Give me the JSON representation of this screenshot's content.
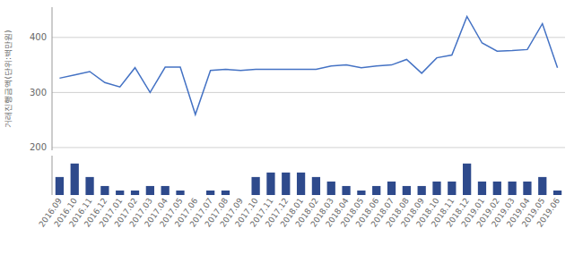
{
  "chart_data": [
    {
      "type": "line",
      "y_label": "거래진행금액(단위:백만원)",
      "categories": [
        "2016.09",
        "2016.10",
        "2016.11",
        "2016.12",
        "2017.01",
        "2017.02",
        "2017.03",
        "2017.04",
        "2017.05",
        "2017.06",
        "2017.07",
        "2017.08",
        "2017.09",
        "2017.10",
        "2017.11",
        "2017.12",
        "2018.01",
        "2018.02",
        "2018.03",
        "2018.04",
        "2018.05",
        "2018.06",
        "2018.07",
        "2018.08",
        "2018.09",
        "2018.10",
        "2018.11",
        "2018.12",
        "2019.01",
        "2019.02",
        "2019.03",
        "2019.04",
        "2019.05",
        "2019.06"
      ],
      "values": [
        326,
        332,
        338,
        318,
        310,
        345,
        300,
        346,
        346,
        260,
        340,
        342,
        340,
        342,
        342,
        342,
        342,
        342,
        348,
        350,
        345,
        348,
        350,
        360,
        335,
        363,
        368,
        438,
        390,
        375,
        376,
        378,
        425,
        345
      ],
      "color": "#4472c4",
      "ylim": [
        195,
        455
      ],
      "yticks": [
        200,
        300,
        400
      ],
      "grid": true,
      "tick_labels": "y"
    },
    {
      "type": "bar",
      "categories": [
        "2016.09",
        "2016.10",
        "2016.11",
        "2016.12",
        "2017.01",
        "2017.02",
        "2017.03",
        "2017.04",
        "2017.05",
        "2017.06",
        "2017.07",
        "2017.08",
        "2017.09",
        "2017.10",
        "2017.11",
        "2017.12",
        "2018.01",
        "2018.02",
        "2018.03",
        "2018.04",
        "2018.05",
        "2018.06",
        "2018.07",
        "2018.08",
        "2018.09",
        "2018.10",
        "2018.11",
        "2018.12",
        "2019.01",
        "2019.02",
        "2019.03",
        "2019.04",
        "2019.05",
        "2019.06"
      ],
      "values": [
        4,
        7,
        4,
        2,
        1,
        1,
        2,
        2,
        1,
        0,
        1,
        1,
        0,
        4,
        5,
        5,
        5,
        4,
        3,
        2,
        1,
        2,
        3,
        2,
        2,
        3,
        3,
        7,
        3,
        3,
        3,
        3,
        4,
        1
      ],
      "color": "#2e4a8c",
      "ylim": [
        0,
        8.75
      ],
      "grid": false,
      "tick_labels": "x"
    }
  ]
}
